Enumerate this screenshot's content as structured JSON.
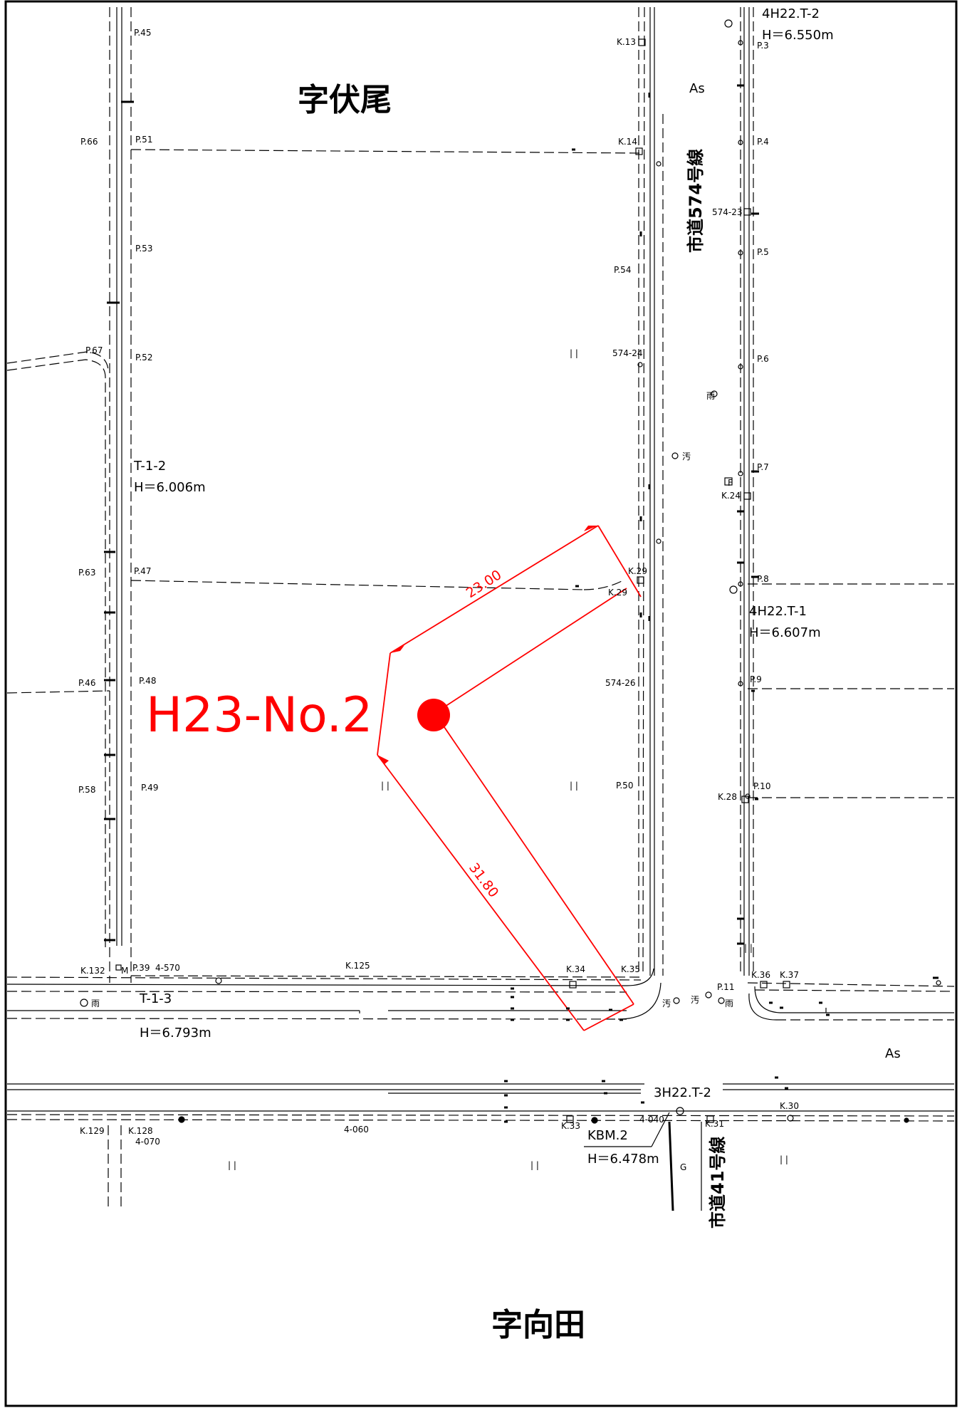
{
  "areas": {
    "north": "字伏尾",
    "south": "字向田"
  },
  "roads": {
    "route_574": "市道574号線",
    "route_41": "市道41号線",
    "asphalt_east": "As",
    "asphalt_south": "As"
  },
  "boring_point": {
    "label": "H23-No.2",
    "dim_a": "23.00",
    "dim_b": "31.80"
  },
  "benchmarks": {
    "t12_name": "T-1-2",
    "t12_h": "H＝6.006m",
    "t13_name": "T-1-3",
    "t13_h": "H＝6.793m",
    "h22t2_name": "4H22.T-2",
    "h22t2_h": "H＝6.550m",
    "h22t1_name": "4H22.T-1",
    "h22t1_h": "H＝6.607m",
    "h22t2s_name": "3H22.T-2",
    "kbm2_name": "KBM.2",
    "kbm2_h": "H＝6.478m"
  },
  "points": {
    "p45": "P.45",
    "p66": "P.66",
    "p51": "P.51",
    "p53": "P.53",
    "p67": "P.67",
    "p52": "P.52",
    "p63": "P.63",
    "p47": "P.47",
    "p46": "P.46",
    "p48": "P.48",
    "p58": "P.58",
    "p49": "P.49",
    "p39": "P.39",
    "p54": "P.54",
    "p50": "P.50",
    "p3": "P.3",
    "p4": "P.4",
    "p5": "P.5",
    "p6": "P.6",
    "p7": "P.7",
    "p8": "P.8",
    "p9": "P.9",
    "p10": "P.10",
    "p11": "P.11",
    "k13": "K.13",
    "k14": "K.14",
    "k29a": "K.29",
    "k29b": "K.29",
    "k24": "K.24",
    "k28": "K.28",
    "k132": "K.132",
    "k125": "K.125",
    "k34": "K.34",
    "k35": "K.35",
    "k36": "K.36",
    "k37": "K.37",
    "k129": "K.129",
    "k128": "K.128",
    "k33": "K.33",
    "k31": "K.31",
    "k30": "K.30",
    "l574_23": "574-23",
    "l574_24": "574-24",
    "l574_26": "574-26",
    "l4_570": "4-570",
    "l4_060": "4-060",
    "l4_070": "4-070",
    "l4_040": "4-040",
    "ame1": "雨",
    "ame2": "雨",
    "ame3": "雨",
    "o1": "汚",
    "o2": "汚",
    "o3": "汚",
    "m_mark": "M",
    "f_mark": "F",
    "g_mark": "G",
    "ll1": "| |",
    "ll2": "| |",
    "ll3": "| |",
    "ll4": "| |",
    "ll5": "| |",
    "ll6": "| |",
    "ll7": "| |"
  }
}
